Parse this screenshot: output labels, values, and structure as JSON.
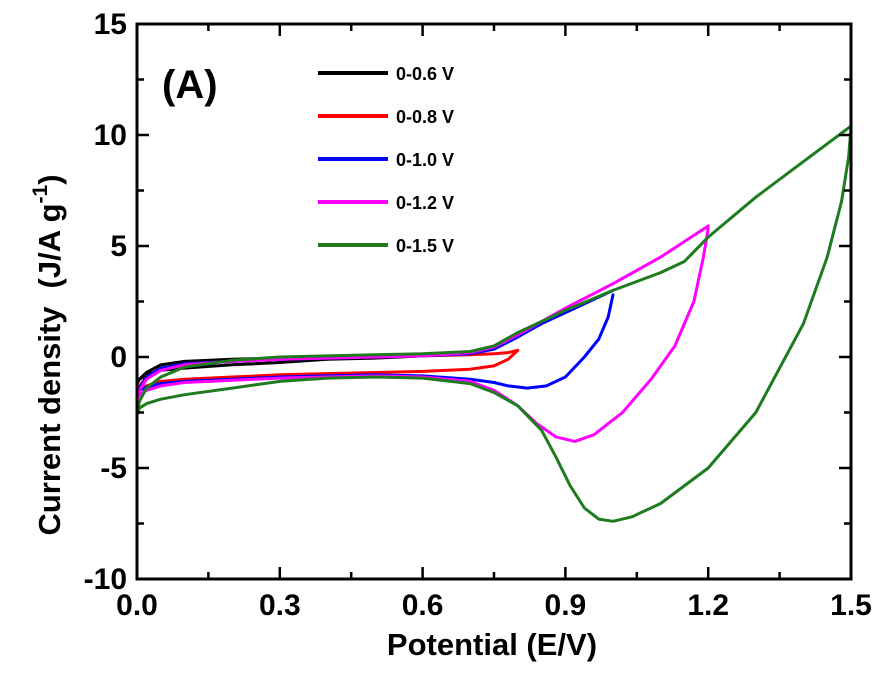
{
  "chart_data": {
    "type": "line",
    "panel_label": "(A)",
    "xlabel": "Potential (E/V)",
    "ylabel_main": "Current density",
    "ylabel_unit": "(J/A g",
    "ylabel_unit_exp": "-1",
    "ylabel_unit_close": ")",
    "xlim": [
      0.0,
      1.5
    ],
    "ylim": [
      -10,
      15
    ],
    "xticks": [
      0.0,
      0.3,
      0.6,
      0.9,
      1.2,
      1.5
    ],
    "xtick_labels": [
      "0.0",
      "0.3",
      "0.6",
      "0.9",
      "1.2",
      "1.5"
    ],
    "yticks": [
      -10,
      -5,
      0,
      5,
      10,
      15
    ],
    "ytick_labels": [
      "-10",
      "-5",
      "0",
      "5",
      "10",
      "15"
    ],
    "grid": false,
    "legend_position": "top-center",
    "series": [
      {
        "name": "0-0.6 V",
        "color": "#000000",
        "x": [
          0.6,
          0.5,
          0.4,
          0.3,
          0.2,
          0.1,
          0.05,
          0.02,
          0.005,
          0.0,
          0.005,
          0.02,
          0.05,
          0.1,
          0.2,
          0.3,
          0.4,
          0.5,
          0.6
        ],
        "y": [
          0.05,
          -0.05,
          -0.1,
          -0.25,
          -0.35,
          -0.5,
          -0.6,
          -0.8,
          -1.0,
          -1.2,
          -1.0,
          -0.7,
          -0.35,
          -0.2,
          -0.1,
          -0.05,
          0.0,
          0.05,
          0.05
        ]
      },
      {
        "name": "0-0.8 V",
        "color": "#ff0000",
        "x": [
          0.8,
          0.78,
          0.75,
          0.7,
          0.6,
          0.5,
          0.4,
          0.3,
          0.2,
          0.1,
          0.05,
          0.02,
          0.005,
          0.0,
          0.005,
          0.02,
          0.05,
          0.1,
          0.2,
          0.3,
          0.4,
          0.5,
          0.6,
          0.7,
          0.75,
          0.78,
          0.8
        ],
        "y": [
          0.3,
          -0.1,
          -0.4,
          -0.55,
          -0.65,
          -0.7,
          -0.75,
          -0.8,
          -0.9,
          -1.0,
          -1.1,
          -1.3,
          -1.5,
          -1.6,
          -1.3,
          -0.9,
          -0.5,
          -0.3,
          -0.2,
          -0.1,
          0.0,
          0.0,
          0.05,
          0.1,
          0.15,
          0.2,
          0.3
        ]
      },
      {
        "name": "0-1.0 V",
        "color": "#0000ff",
        "x": [
          1.0,
          0.99,
          0.97,
          0.94,
          0.9,
          0.86,
          0.82,
          0.78,
          0.75,
          0.7,
          0.6,
          0.5,
          0.4,
          0.3,
          0.2,
          0.1,
          0.05,
          0.02,
          0.005,
          0.0,
          0.005,
          0.02,
          0.05,
          0.1,
          0.2,
          0.3,
          0.4,
          0.5,
          0.6,
          0.7,
          0.75,
          0.8,
          0.85,
          0.9,
          0.95,
          1.0
        ],
        "y": [
          2.8,
          1.8,
          0.8,
          0.0,
          -0.9,
          -1.3,
          -1.4,
          -1.3,
          -1.15,
          -1.0,
          -0.85,
          -0.8,
          -0.85,
          -0.9,
          -1.0,
          -1.1,
          -1.2,
          -1.35,
          -1.5,
          -1.7,
          -1.4,
          -0.9,
          -0.5,
          -0.3,
          -0.2,
          -0.1,
          -0.05,
          0.0,
          0.05,
          0.15,
          0.35,
          0.9,
          1.5,
          2.0,
          2.5,
          3.0
        ]
      },
      {
        "name": "0-1.2 V",
        "color": "#ff00ff",
        "x": [
          1.2,
          1.19,
          1.17,
          1.13,
          1.08,
          1.02,
          0.96,
          0.92,
          0.88,
          0.84,
          0.8,
          0.75,
          0.7,
          0.6,
          0.5,
          0.4,
          0.3,
          0.2,
          0.1,
          0.05,
          0.02,
          0.005,
          0.0,
          0.005,
          0.02,
          0.05,
          0.1,
          0.2,
          0.3,
          0.4,
          0.5,
          0.6,
          0.7,
          0.75,
          0.8,
          0.9,
          1.0,
          1.1,
          1.2
        ],
        "y": [
          5.8,
          4.5,
          2.5,
          0.5,
          -1.0,
          -2.5,
          -3.5,
          -3.8,
          -3.6,
          -3.0,
          -2.2,
          -1.5,
          -1.1,
          -0.9,
          -0.85,
          -0.9,
          -0.95,
          -1.05,
          -1.15,
          -1.3,
          -1.5,
          -1.7,
          -1.9,
          -1.5,
          -1.0,
          -0.6,
          -0.35,
          -0.2,
          -0.1,
          -0.05,
          0.0,
          0.05,
          0.2,
          0.45,
          1.0,
          2.2,
          3.3,
          4.5,
          5.9
        ]
      },
      {
        "name": "0-1.5 V",
        "color": "#1e7b1e",
        "x": [
          1.5,
          1.495,
          1.48,
          1.45,
          1.4,
          1.3,
          1.2,
          1.1,
          1.04,
          1.0,
          0.97,
          0.94,
          0.91,
          0.88,
          0.85,
          0.8,
          0.75,
          0.7,
          0.6,
          0.5,
          0.4,
          0.3,
          0.2,
          0.1,
          0.05,
          0.02,
          0.005,
          0.0,
          0.005,
          0.02,
          0.05,
          0.1,
          0.2,
          0.3,
          0.4,
          0.5,
          0.6,
          0.7,
          0.75,
          0.8,
          0.9,
          1.0,
          1.1,
          1.15,
          1.2,
          1.3,
          1.4,
          1.5
        ],
        "y": [
          10.3,
          9.0,
          7.0,
          4.5,
          1.5,
          -2.5,
          -5.0,
          -6.6,
          -7.2,
          -7.4,
          -7.3,
          -6.8,
          -5.8,
          -4.5,
          -3.3,
          -2.2,
          -1.6,
          -1.2,
          -0.95,
          -0.9,
          -0.95,
          -1.1,
          -1.4,
          -1.7,
          -1.9,
          -2.1,
          -2.3,
          -2.6,
          -2.0,
          -1.4,
          -0.9,
          -0.45,
          -0.15,
          0.0,
          0.05,
          0.1,
          0.15,
          0.25,
          0.5,
          1.1,
          2.1,
          3.0,
          3.8,
          4.3,
          5.4,
          7.2,
          8.8,
          10.4
        ]
      }
    ]
  }
}
